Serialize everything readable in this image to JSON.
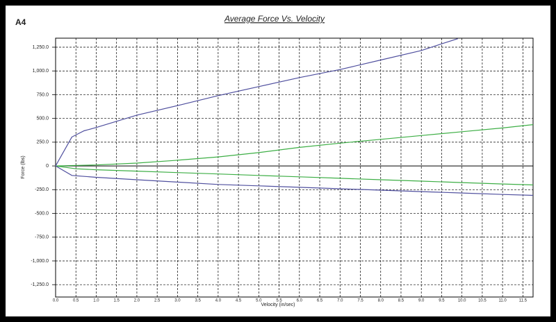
{
  "panel_label": "A4",
  "chart_data": {
    "type": "line",
    "title": "Average Force Vs. Velocity",
    "xlabel": "Velocity (in/sec)",
    "ylabel": "Force (lbs)",
    "xlim": [
      0,
      11.75
    ],
    "ylim": [
      -1380,
      1345
    ],
    "grid": true,
    "xticks": [
      {
        "value": 0,
        "label": "0.0"
      },
      0.5,
      {
        "value": 1,
        "label": "1.0"
      },
      1.5,
      {
        "value": 2,
        "label": "2.0"
      },
      2.5,
      {
        "value": 3,
        "label": "3.0"
      },
      3.5,
      {
        "value": 4,
        "label": "4.0"
      },
      4.5,
      {
        "value": 5,
        "label": "5.0"
      },
      5.5,
      {
        "value": 6,
        "label": "6.0"
      },
      6.5,
      {
        "value": 7,
        "label": "7.0"
      },
      7.5,
      {
        "value": 8,
        "label": "8.0"
      },
      8.5,
      {
        "value": 9,
        "label": "9.0"
      },
      9.5,
      {
        "value": 10,
        "label": "10.0"
      },
      10.5,
      {
        "value": 11,
        "label": "11.0"
      },
      11.5
    ],
    "yticks": [
      {
        "value": 1250,
        "label": "1,250.0"
      },
      {
        "value": 1000,
        "label": "1,000.0"
      },
      {
        "value": 750,
        "label": "750.0"
      },
      {
        "value": 500,
        "label": "500.0"
      },
      {
        "value": 250,
        "label": "250.0"
      },
      0,
      {
        "value": -250,
        "label": "-250.0"
      },
      {
        "value": -500,
        "label": "-500.0"
      },
      {
        "value": -750,
        "label": "-750.0"
      },
      {
        "value": -1000,
        "label": "-1,000.0"
      },
      {
        "value": -1250,
        "label": "-1,250.0"
      }
    ],
    "series": [
      {
        "color": "#4f4f9e",
        "x": [
          0,
          0.4,
          0.7,
          1,
          2,
          3,
          4,
          5,
          6,
          7,
          8,
          9,
          9.5,
          9.9
        ],
        "values": [
          0,
          305,
          370,
          405,
          535,
          635,
          740,
          835,
          930,
          1015,
          1115,
          1215,
          1285,
          1340
        ]
      },
      {
        "color": "#3cae44",
        "x": [
          0,
          1,
          2,
          3,
          4,
          5,
          6,
          7,
          8,
          9,
          10,
          11,
          11.75
        ],
        "values": [
          0,
          10,
          30,
          60,
          95,
          140,
          195,
          240,
          280,
          320,
          360,
          400,
          435
        ]
      },
      {
        "color": "#3cae44",
        "x": [
          0,
          0.5,
          1,
          2,
          3,
          4,
          5,
          6,
          7,
          8,
          9,
          10,
          11,
          11.75
        ],
        "values": [
          0,
          -30,
          -40,
          -55,
          -70,
          -85,
          -100,
          -115,
          -130,
          -145,
          -160,
          -175,
          -190,
          -200
        ]
      },
      {
        "color": "#4f4f9e",
        "x": [
          0,
          0.4,
          1,
          2,
          3,
          4,
          5,
          6,
          7,
          8,
          9,
          10,
          11,
          11.75
        ],
        "values": [
          0,
          -100,
          -120,
          -145,
          -170,
          -195,
          -210,
          -225,
          -240,
          -255,
          -270,
          -285,
          -300,
          -310
        ]
      }
    ]
  }
}
